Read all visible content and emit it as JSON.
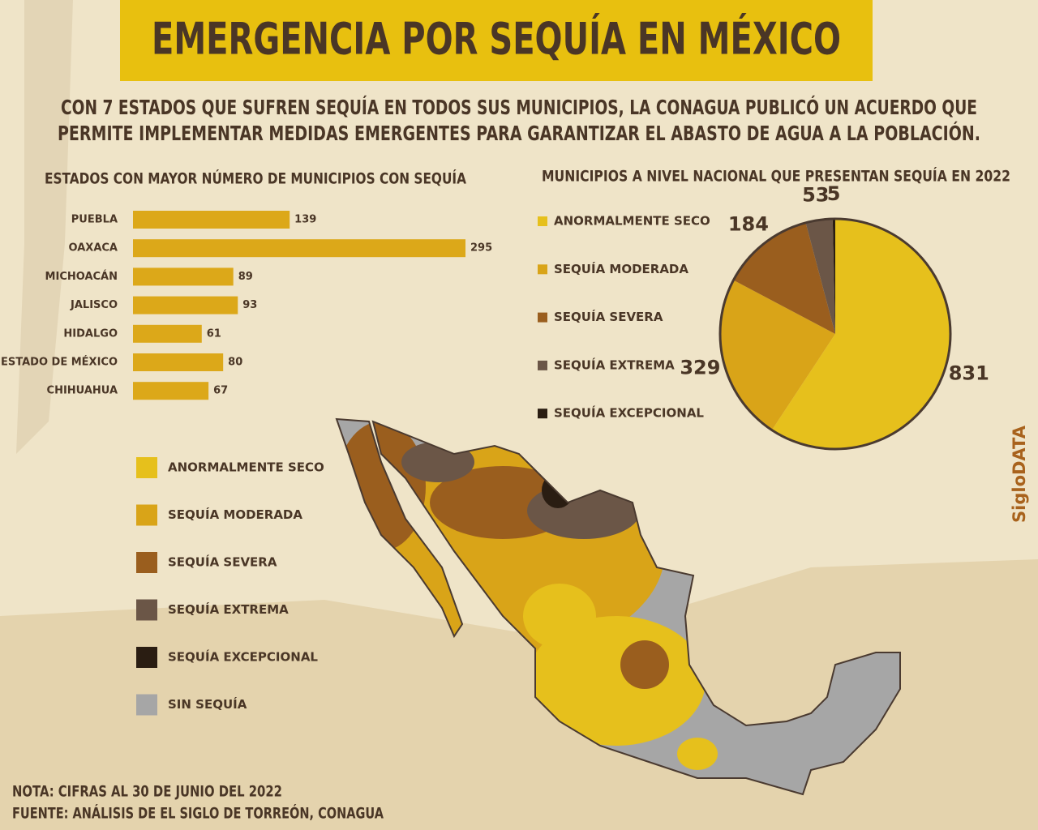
{
  "title": "EMERGENCIA POR SEQUÍA EN MÉXICO",
  "subtitle": [
    "CON 7 ESTADOS QUE SUFREN SEQUÍA EN TODOS SUS MUNICIPIOS, LA CONAGUA PUBLICÓ UN ACUERDO QUE",
    "PERMITE IMPLEMENTAR MEDIDAS EMERGENTES PARA GARANTIZAR EL ABASTO DE AGUA A LA POBLACIÓN."
  ],
  "chart_data": [
    {
      "type": "bar",
      "orientation": "horizontal",
      "title": "ESTADOS CON MAYOR NÚMERO DE MUNICIPIOS CON SEQUÍA",
      "categories": [
        "PUEBLA",
        "OAXACA",
        "MICHOACÁN",
        "JALISCO",
        "HIDALGO",
        "ESTADO DE MÉXICO",
        "CHIHUAHUA"
      ],
      "values": [
        139,
        295,
        89,
        93,
        61,
        80,
        67
      ],
      "color": "#dca819"
    },
    {
      "type": "pie",
      "title": "MUNICIPIOS A NIVEL NACIONAL QUE PRESENTAN SEQUÍA EN 2022",
      "categories": [
        "ANORMALMENTE SECO",
        "SEQUÍA MODERADA",
        "SEQUÍA SEVERA",
        "SEQUÍA EXTREMA",
        "SEQUÍA EXCEPCIONAL"
      ],
      "values": [
        831,
        329,
        184,
        53,
        5
      ],
      "colors": [
        "#e6c01c",
        "#d9a418",
        "#9a5e1e",
        "#6b5647",
        "#2a1d12"
      ]
    }
  ],
  "map_legend": [
    {
      "label": "ANORMALMENTE SECO",
      "color": "#e6c01c"
    },
    {
      "label": "SEQUÍA MODERADA",
      "color": "#d9a418"
    },
    {
      "label": "SEQUÍA SEVERA",
      "color": "#9a5e1e"
    },
    {
      "label": "SEQUÍA EXTREMA",
      "color": "#6b5647"
    },
    {
      "label": "SEQUÍA EXCEPCIONAL",
      "color": "#2a1d12"
    },
    {
      "label": "SIN SEQUÍA",
      "color": "#a6a6a6"
    }
  ],
  "note": "NOTA: CIFRAS AL 30 DE JUNIO DEL 2022",
  "source": "FUENTE: ANÁLISIS DE EL SIGLO DE TORREÓN, CONAGUA",
  "brand": "SigloDATA"
}
